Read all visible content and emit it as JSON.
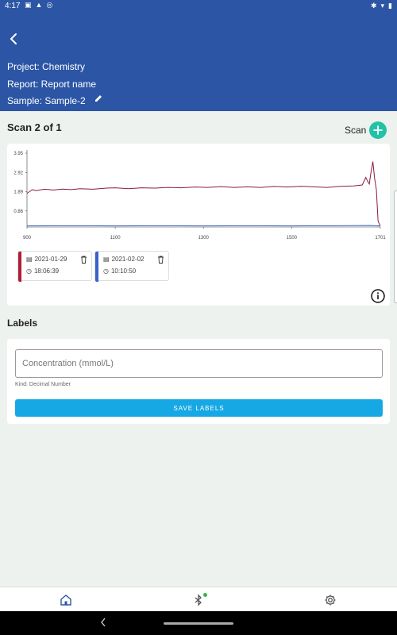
{
  "status": {
    "time": "4:17"
  },
  "header": {
    "project": "Project: Chemistry",
    "report": "Report: Report name",
    "sample": "Sample: Sample-2"
  },
  "scan": {
    "title": "Scan 2 of 1",
    "button_label": "Scan"
  },
  "chart_data": {
    "type": "line",
    "x_ticks": [
      "900",
      "1100",
      "1300",
      "1500",
      "1701"
    ],
    "y_ticks": [
      "3.95",
      "2.92",
      "1.89",
      "0.86"
    ],
    "xlim": [
      900,
      1701
    ],
    "ylim": [
      0,
      3.95
    ],
    "series": [
      {
        "color": "#8b1d3b",
        "x": [
          900,
          912,
          920,
          940,
          960,
          980,
          1000,
          1020,
          1050,
          1080,
          1100,
          1130,
          1160,
          1190,
          1220,
          1250,
          1280,
          1310,
          1340,
          1370,
          1400,
          1430,
          1460,
          1490,
          1520,
          1550,
          1580,
          1610,
          1640,
          1660,
          1668,
          1672,
          1676,
          1680,
          1684,
          1688,
          1692,
          1696,
          1701
        ],
        "y": [
          1.8,
          2.0,
          1.95,
          2.02,
          1.98,
          2.03,
          2.0,
          2.05,
          2.02,
          2.08,
          2.1,
          2.05,
          2.1,
          2.08,
          2.12,
          2.1,
          2.14,
          2.12,
          2.16,
          2.12,
          2.15,
          2.12,
          2.17,
          2.14,
          2.18,
          2.15,
          2.12,
          2.18,
          2.2,
          2.25,
          2.65,
          2.45,
          2.3,
          2.95,
          3.5,
          2.6,
          2.0,
          0.3,
          0.05
        ]
      },
      {
        "color": "#3a60c0",
        "x": [
          900,
          1000,
          1100,
          1200,
          1300,
          1400,
          1500,
          1600,
          1680,
          1701
        ],
        "y": [
          0.06,
          0.07,
          0.06,
          0.07,
          0.06,
          0.07,
          0.06,
          0.07,
          0.08,
          0.05
        ]
      }
    ]
  },
  "scans": [
    {
      "date": "2021-01-29",
      "time": "18:06:39",
      "color": "#b01e3a"
    },
    {
      "date": "2021-02-02",
      "time": "10:10:50",
      "color": "#3a62cc"
    }
  ],
  "labels": {
    "title": "Labels",
    "field_placeholder": "Concentration (mmol/L)",
    "field_value": "",
    "kind": "Kind: Decimal Number",
    "save_label": "SAVE LABELS"
  },
  "colors": {
    "header": "#2c56a5",
    "accent_teal": "#22c2a7",
    "save_button": "#16a8e4",
    "bluetooth_dot": "#35b64b"
  }
}
